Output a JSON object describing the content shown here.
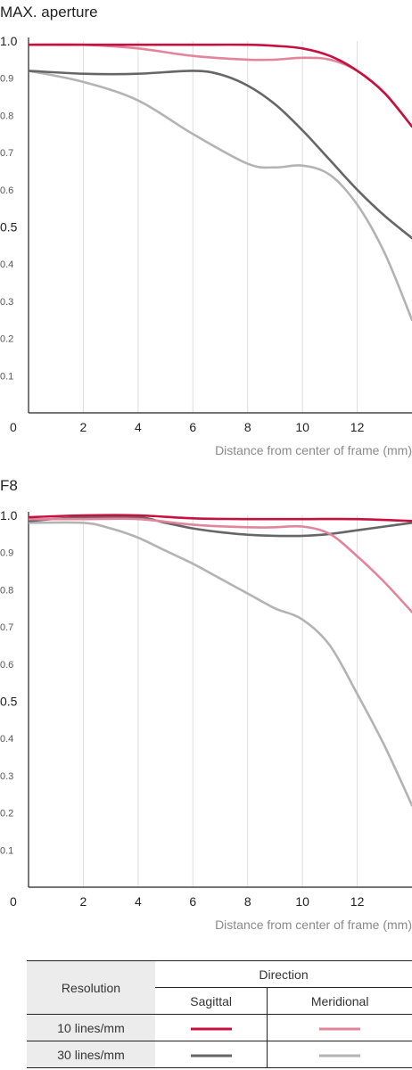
{
  "charts": [
    {
      "title": "MAX. aperture",
      "xlabel": "Distance from center of frame (mm)"
    },
    {
      "title": "F8",
      "xlabel": "Distance from center of frame (mm)"
    }
  ],
  "axis": {
    "y_ticks": [
      "1.0",
      "0.9",
      "0.8",
      "0.7",
      "0.6",
      "0.5",
      "0.4",
      "0.3",
      "0.2",
      "0.1"
    ],
    "x_ticks": [
      "2",
      "4",
      "6",
      "8",
      "10",
      "12"
    ],
    "origin": "0"
  },
  "legend": {
    "resolution_header": "Resolution",
    "direction_header": "Direction",
    "sagittal": "Sagittal",
    "meridional": "Meridional",
    "row1": "10 lines/mm",
    "row2": "30 lines/mm"
  },
  "colors": {
    "s10": "#c8103e",
    "m10": "#e2859c",
    "s30": "#666666",
    "m30": "#b3b3b3"
  },
  "chart_data": [
    {
      "type": "line",
      "title": "MAX. aperture",
      "xlabel": "Distance from center of frame (mm)",
      "ylabel": "",
      "xlim": [
        0,
        14
      ],
      "ylim": [
        0,
        1.0
      ],
      "grid": "vertical",
      "series": [
        {
          "key": "s10",
          "x": [
            0,
            2,
            4,
            6,
            8,
            9,
            10,
            11,
            12,
            13,
            14
          ],
          "y": [
            0.99,
            0.99,
            0.99,
            0.99,
            0.99,
            0.987,
            0.98,
            0.96,
            0.92,
            0.86,
            0.77
          ]
        },
        {
          "key": "m10",
          "x": [
            0,
            2,
            4,
            6,
            8,
            9,
            10,
            11,
            12,
            13,
            14
          ],
          "y": [
            0.99,
            0.99,
            0.98,
            0.96,
            0.95,
            0.95,
            0.955,
            0.95,
            0.92,
            0.86,
            0.77
          ]
        },
        {
          "key": "s30",
          "x": [
            0,
            2,
            4,
            6,
            7,
            8,
            9,
            10,
            11,
            12,
            13,
            14
          ],
          "y": [
            0.92,
            0.912,
            0.912,
            0.92,
            0.91,
            0.88,
            0.83,
            0.76,
            0.68,
            0.6,
            0.53,
            0.47
          ]
        },
        {
          "key": "m30",
          "x": [
            0,
            2,
            4,
            6,
            8,
            9,
            10,
            11,
            12,
            13,
            14
          ],
          "y": [
            0.92,
            0.89,
            0.84,
            0.75,
            0.67,
            0.66,
            0.665,
            0.64,
            0.56,
            0.43,
            0.25
          ]
        }
      ]
    },
    {
      "type": "line",
      "title": "F8",
      "xlabel": "Distance from center of frame (mm)",
      "ylabel": "",
      "xlim": [
        0,
        14
      ],
      "ylim": [
        0,
        1.0
      ],
      "grid": "vertical",
      "series": [
        {
          "key": "s10",
          "x": [
            0,
            2,
            4,
            6,
            8,
            10,
            12,
            14
          ],
          "y": [
            0.995,
            1.0,
            1.0,
            0.992,
            0.99,
            0.99,
            0.99,
            0.985
          ]
        },
        {
          "key": "m10",
          "x": [
            0,
            2,
            4,
            6,
            8,
            9,
            10,
            11,
            12,
            13,
            14
          ],
          "y": [
            0.99,
            0.99,
            0.99,
            0.975,
            0.968,
            0.968,
            0.97,
            0.95,
            0.89,
            0.82,
            0.74
          ]
        },
        {
          "key": "s30",
          "x": [
            0,
            2,
            4,
            5,
            6,
            7,
            8,
            9,
            10,
            11,
            12,
            13,
            14
          ],
          "y": [
            0.985,
            0.995,
            0.995,
            0.98,
            0.965,
            0.955,
            0.948,
            0.945,
            0.945,
            0.95,
            0.96,
            0.97,
            0.98
          ]
        },
        {
          "key": "m30",
          "x": [
            0,
            2,
            3,
            4,
            5,
            6,
            7,
            8,
            9,
            10,
            11,
            12,
            13,
            14
          ],
          "y": [
            0.98,
            0.98,
            0.965,
            0.94,
            0.905,
            0.87,
            0.83,
            0.79,
            0.75,
            0.72,
            0.65,
            0.52,
            0.38,
            0.22
          ]
        }
      ]
    }
  ]
}
